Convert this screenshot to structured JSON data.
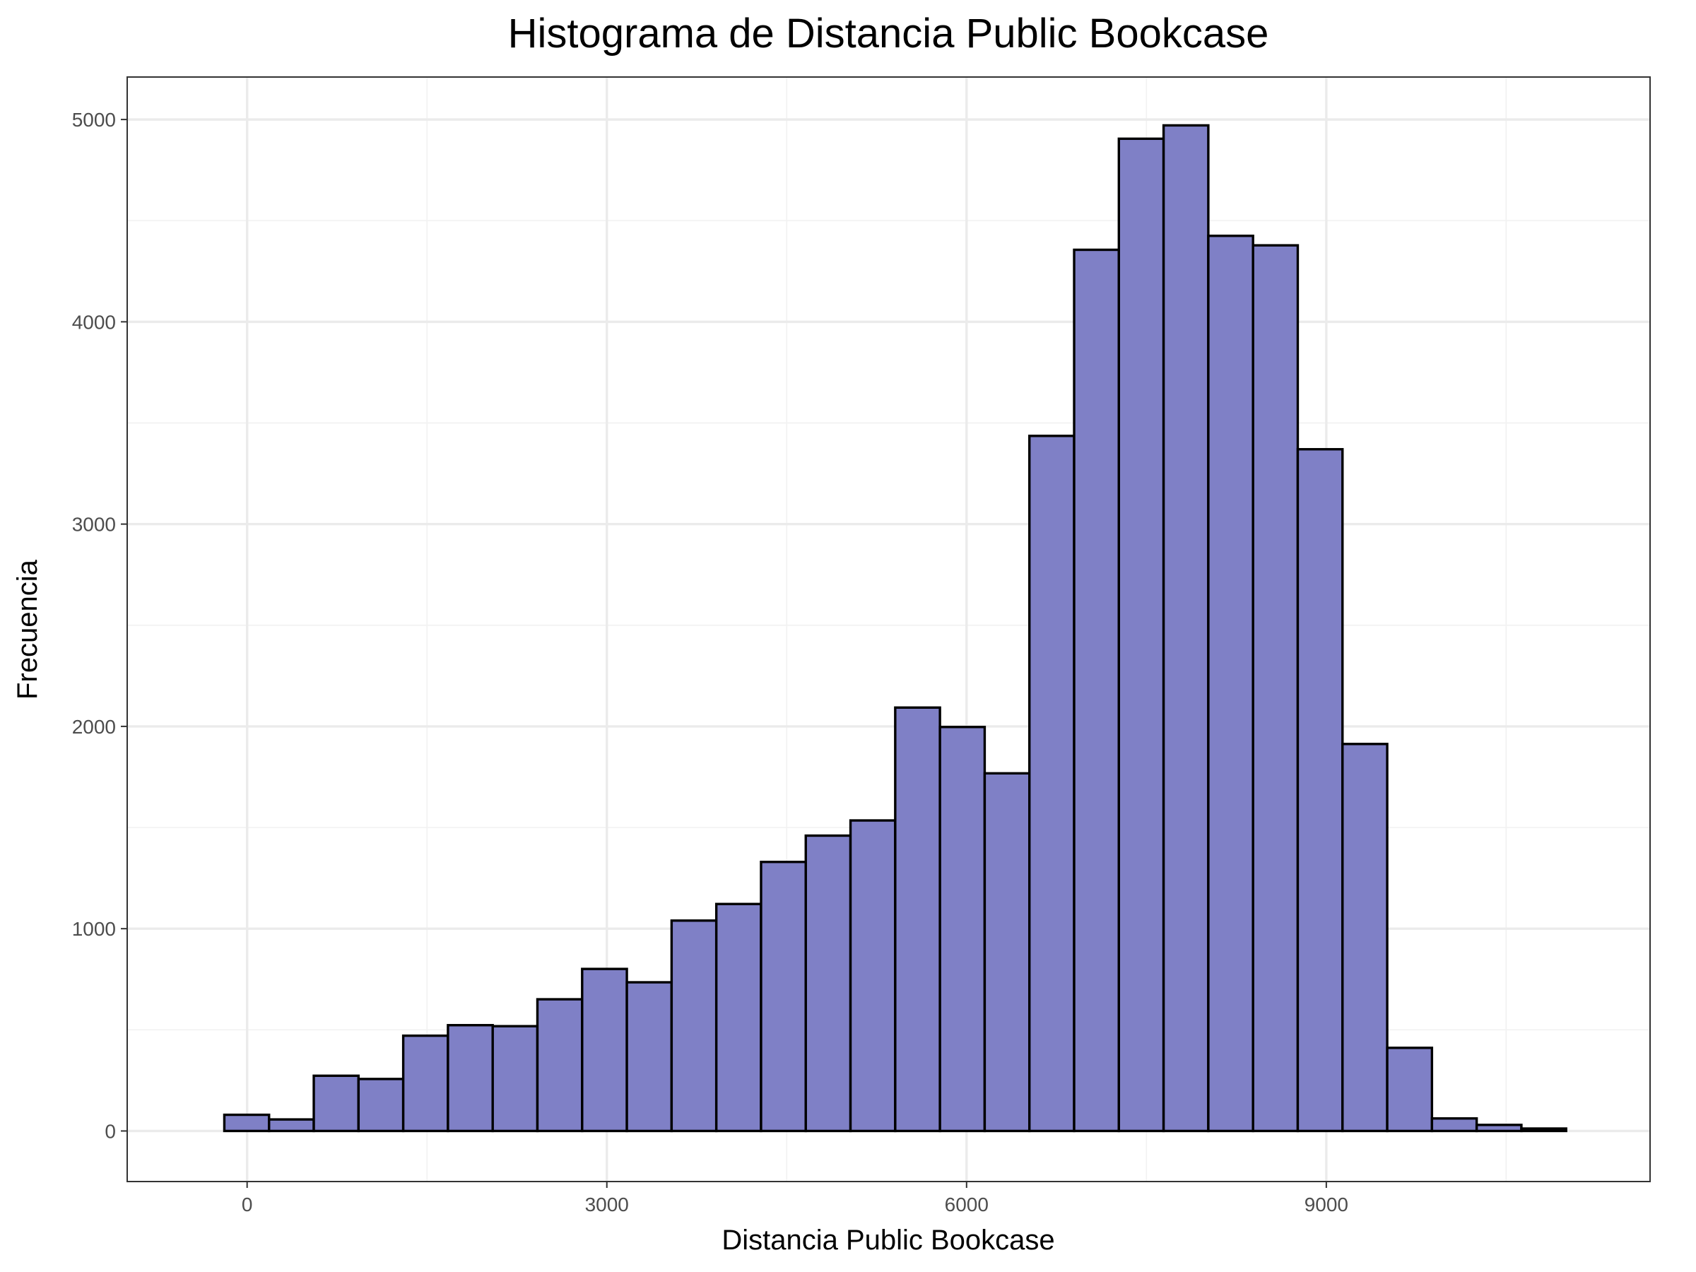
{
  "chart_data": {
    "type": "bar",
    "subtype": "histogram",
    "title": "Histograma de Distancia Public Bookcase",
    "xlabel": "Distancia Public Bookcase",
    "ylabel": "Frecuencia",
    "xlim": [
      -1000,
      11700
    ],
    "ylim": [
      -250,
      5210
    ],
    "x_ticks": [
      0,
      3000,
      6000,
      9000
    ],
    "x_tick_labels": [
      "0",
      "3000",
      "6000",
      "9000"
    ],
    "y_ticks": [
      0,
      1000,
      2000,
      3000,
      4000,
      5000
    ],
    "y_tick_labels": [
      "0",
      "1000",
      "2000",
      "3000",
      "4000",
      "5000"
    ],
    "grid": true,
    "bar_fill": "#7f80c6",
    "bar_outline": "#000000",
    "bins": [
      {
        "x0": -190,
        "x1": 183,
        "count": 80
      },
      {
        "x0": 183,
        "x1": 556,
        "count": 57
      },
      {
        "x0": 556,
        "x1": 929,
        "count": 273
      },
      {
        "x0": 929,
        "x1": 1302,
        "count": 257
      },
      {
        "x0": 1302,
        "x1": 1675,
        "count": 471
      },
      {
        "x0": 1675,
        "x1": 2048,
        "count": 523
      },
      {
        "x0": 2048,
        "x1": 2421,
        "count": 518
      },
      {
        "x0": 2421,
        "x1": 2794,
        "count": 651
      },
      {
        "x0": 2794,
        "x1": 3167,
        "count": 801
      },
      {
        "x0": 3167,
        "x1": 3540,
        "count": 735
      },
      {
        "x0": 3540,
        "x1": 3913,
        "count": 1040
      },
      {
        "x0": 3913,
        "x1": 4286,
        "count": 1122
      },
      {
        "x0": 4286,
        "x1": 4659,
        "count": 1330
      },
      {
        "x0": 4659,
        "x1": 5032,
        "count": 1460
      },
      {
        "x0": 5032,
        "x1": 5405,
        "count": 1535
      },
      {
        "x0": 5405,
        "x1": 5778,
        "count": 2093
      },
      {
        "x0": 5778,
        "x1": 6151,
        "count": 1997
      },
      {
        "x0": 6151,
        "x1": 6524,
        "count": 1768
      },
      {
        "x0": 6524,
        "x1": 6897,
        "count": 3436
      },
      {
        "x0": 6897,
        "x1": 7270,
        "count": 4356
      },
      {
        "x0": 7270,
        "x1": 7643,
        "count": 4905
      },
      {
        "x0": 7643,
        "x1": 8016,
        "count": 4971
      },
      {
        "x0": 8016,
        "x1": 8389,
        "count": 4425
      },
      {
        "x0": 8389,
        "x1": 8762,
        "count": 4378
      },
      {
        "x0": 8762,
        "x1": 9135,
        "count": 3370
      },
      {
        "x0": 9135,
        "x1": 9508,
        "count": 1913
      },
      {
        "x0": 9508,
        "x1": 9881,
        "count": 411
      },
      {
        "x0": 9881,
        "x1": 10254,
        "count": 62
      },
      {
        "x0": 10254,
        "x1": 10627,
        "count": 30
      },
      {
        "x0": 10627,
        "x1": 11000,
        "count": 12
      }
    ]
  }
}
